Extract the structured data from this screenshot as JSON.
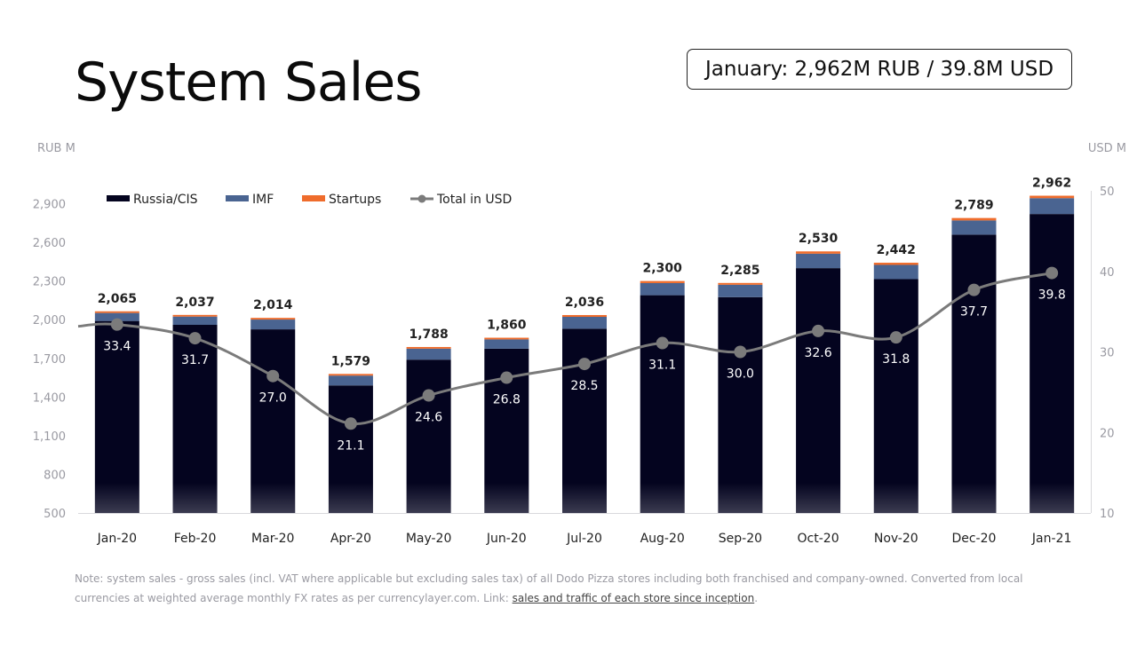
{
  "title": "System Sales",
  "headline": "January: 2,962M RUB / 39.8M USD",
  "note": {
    "text": "Note: system sales - gross sales (incl. VAT where applicable but excluding sales tax) of all Dodo Pizza stores including both franchised and company-owned. Converted from local currencies at weighted average monthly FX rates as per currencylayer.com. Link: ",
    "link_text": "sales and traffic of each store since inception",
    "end": "."
  },
  "colors": {
    "russia": "#04041f",
    "imf": "#4a6491",
    "startups": "#ef6c2c",
    "line": "#7b7b7b",
    "axis_text": "#9a9aa2"
  },
  "chart_data": {
    "type": "bar",
    "stacked": true,
    "categories": [
      "Jan-20",
      "Feb-20",
      "Mar-20",
      "Apr-20",
      "May-20",
      "Jun-20",
      "Jul-20",
      "Aug-20",
      "Sep-20",
      "Oct-20",
      "Nov-20",
      "Dec-20",
      "Jan-21"
    ],
    "series": [
      {
        "name": "Russia/CIS",
        "values": [
          1990,
          1960,
          1925,
          1490,
          1690,
          1775,
          1930,
          2190,
          2175,
          2400,
          2315,
          2660,
          2820
        ]
      },
      {
        "name": "IMF",
        "values": [
          62,
          64,
          76,
          76,
          85,
          72,
          92,
          94,
          96,
          112,
          110,
          110,
          123
        ]
      },
      {
        "name": "Startups",
        "values": [
          13,
          13,
          13,
          13,
          13,
          13,
          14,
          16,
          14,
          18,
          17,
          19,
          19
        ]
      }
    ],
    "totals": [
      2065,
      2037,
      2014,
      1579,
      1788,
      1860,
      2036,
      2300,
      2285,
      2530,
      2442,
      2789,
      2962
    ],
    "total_labels": [
      "2,065",
      "2,037",
      "2,014",
      "1,579",
      "1,788",
      "1,860",
      "2,036",
      "2,300",
      "2,285",
      "2,530",
      "2,442",
      "2,789",
      "2,962"
    ],
    "line_series": {
      "name": "Total in USD",
      "axis": "right",
      "values": [
        33.4,
        31.7,
        27.0,
        21.1,
        24.6,
        26.8,
        28.5,
        31.1,
        30.0,
        32.6,
        31.8,
        37.7,
        39.8
      ],
      "labels": [
        "33.4",
        "31.7",
        "27.0",
        "21.1",
        "24.6",
        "26.8",
        "28.5",
        "31.1",
        "30.0",
        "32.6",
        "31.8",
        "37.7",
        "39.8"
      ]
    },
    "y_left": {
      "unit": "RUB M",
      "min": 500,
      "max": 3000,
      "ticks": [
        500,
        800,
        1100,
        1400,
        1700,
        2000,
        2300,
        2600,
        2900
      ],
      "tick_labels": [
        "500",
        "800",
        "1,100",
        "1,400",
        "1,700",
        "2,000",
        "2,300",
        "2,600",
        "2,900"
      ]
    },
    "y_right": {
      "unit": "USD M",
      "min": 10,
      "max": 50,
      "ticks": [
        10,
        20,
        30,
        40,
        50
      ],
      "tick_labels": [
        "10",
        "20",
        "30",
        "40",
        "50"
      ]
    },
    "legend": [
      "Russia/CIS",
      "IMF",
      "Startups",
      "Total in USD"
    ],
    "legend_position": "top-left",
    "grid": false
  }
}
